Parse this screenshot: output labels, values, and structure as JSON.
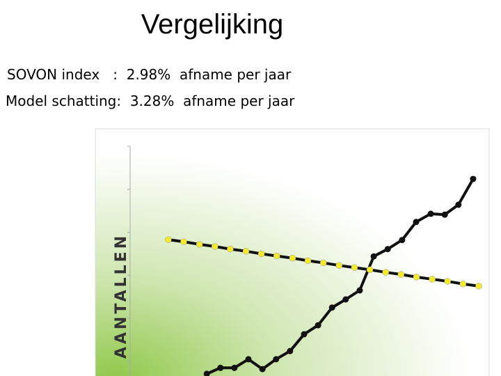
{
  "chart_data": {
    "type": "line",
    "title": "Vergelijking",
    "subtitle_lines": [
      "SOVON index   :  2.98%  afname per jaar",
      "Model schatting:  3.28%  afname per jaar"
    ],
    "y_label": "AANTALLEN",
    "xlim": [
      0,
      100
    ],
    "ylim": [
      -0.34,
      5
    ],
    "yticks": [
      0,
      1,
      2,
      3,
      4,
      5
    ],
    "series": [
      {
        "color": "#111111",
        "marker_color": "#111111",
        "x": [
          21.9,
          25.8,
          29.8,
          33.8,
          37.8,
          41.7,
          45.7,
          49.7,
          53.7,
          57.7,
          61.6,
          65.6,
          69.6,
          73.6,
          77.7,
          81.7,
          85.9,
          89.9,
          93.8,
          98.0
        ],
        "values": [
          -0.29,
          -0.15,
          -0.15,
          0.05,
          -0.18,
          0.05,
          0.24,
          0.63,
          0.84,
          1.25,
          1.44,
          1.65,
          2.44,
          2.61,
          2.82,
          3.24,
          3.43,
          3.41,
          3.64,
          4.24
        ]
      },
      {
        "color": "#111111",
        "marker_color": "#f3ea2e",
        "x": [
          10.9,
          15.3,
          19.8,
          24.2,
          28.6,
          33.1,
          37.5,
          41.9,
          46.4,
          50.8,
          55.2,
          59.7,
          64.1,
          68.5,
          73.0,
          77.4,
          81.8,
          86.3,
          90.7,
          95.1,
          99.6
        ],
        "values": [
          2.83,
          2.78,
          2.72,
          2.67,
          2.61,
          2.56,
          2.5,
          2.45,
          2.4,
          2.34,
          2.29,
          2.23,
          2.18,
          2.13,
          2.07,
          2.02,
          1.96,
          1.91,
          1.86,
          1.8,
          1.75
        ]
      }
    ]
  }
}
